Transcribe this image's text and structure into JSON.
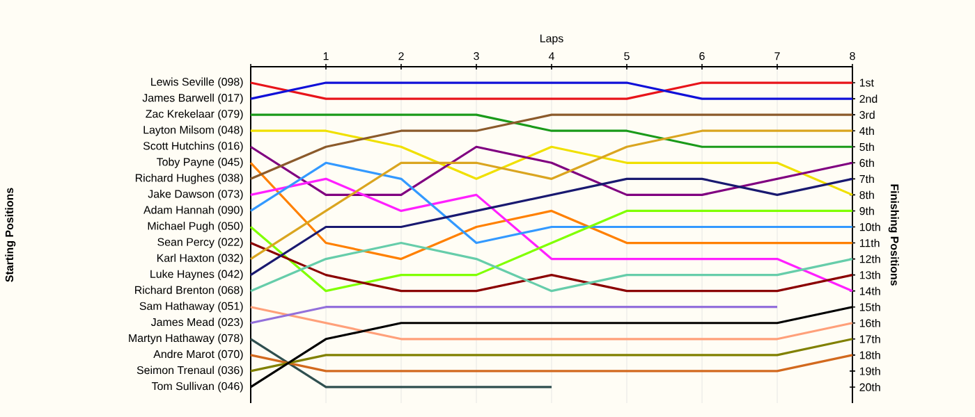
{
  "chart_data": {
    "type": "line",
    "xlabel": "Laps",
    "annotations": [
      "Starting Positions"
    ],
    "y2label": "Finishing Positions",
    "x": [
      0,
      1,
      2,
      3,
      4,
      5,
      6,
      7,
      8
    ],
    "xlim": [
      0,
      8
    ],
    "xticks": [
      {
        "value": 0,
        "label": null
      },
      1,
      2,
      3,
      4,
      5,
      6,
      7,
      8
    ],
    "y2lim": [
      21,
      0
    ],
    "y2ticks": [
      {
        "value": 1,
        "label": "1st"
      },
      {
        "value": 2,
        "label": "2nd"
      },
      {
        "value": 3,
        "label": "3rd"
      },
      {
        "value": 4,
        "label": "4th"
      },
      {
        "value": 5,
        "label": "5th"
      },
      {
        "value": 6,
        "label": "6th"
      },
      {
        "value": 7,
        "label": "7th"
      },
      {
        "value": 8,
        "label": "8th"
      },
      {
        "value": 9,
        "label": "9th"
      },
      {
        "value": 10,
        "label": "10th"
      },
      {
        "value": 11,
        "label": "11th"
      },
      {
        "value": 12,
        "label": "12th"
      },
      {
        "value": 13,
        "label": "13th"
      },
      {
        "value": 14,
        "label": "14th"
      },
      {
        "value": 15,
        "label": "15th"
      },
      {
        "value": 16,
        "label": "16th"
      },
      {
        "value": 17,
        "label": "17th"
      },
      {
        "value": 18,
        "label": "18th"
      },
      {
        "value": 19,
        "label": "19th"
      },
      {
        "value": 20,
        "label": "20th"
      }
    ],
    "grid": true,
    "line_style": "solid",
    "marker": "none",
    "series": [
      {
        "name": "Lewis Seville (098)",
        "axis": "y2",
        "color": "#e8141a",
        "values": [
          1,
          2,
          2,
          2,
          2,
          2,
          1,
          1,
          1
        ]
      },
      {
        "name": "James Barwell (017)",
        "axis": "y2",
        "color": "#1010d8",
        "values": [
          2,
          1,
          1,
          1,
          1,
          1,
          2,
          2,
          2
        ]
      },
      {
        "name": "Zac Krekelaar (079)",
        "axis": "y2",
        "color": "#1a9a1a",
        "values": [
          3,
          3,
          3,
          3,
          4,
          4,
          5,
          5,
          5
        ]
      },
      {
        "name": "Layton Milsom (048)",
        "axis": "y2",
        "color": "#f0e000",
        "values": [
          4,
          4,
          5,
          7,
          5,
          6,
          6,
          6,
          8
        ]
      },
      {
        "name": "Scott Hutchins (016)",
        "axis": "y2",
        "color": "#800080",
        "values": [
          5,
          8,
          8,
          5,
          6,
          8,
          8,
          7,
          6
        ]
      },
      {
        "name": "Toby Payne (045)",
        "axis": "y2",
        "color": "#ff8000",
        "values": [
          6,
          11,
          12,
          10,
          9,
          11,
          11,
          11,
          11
        ]
      },
      {
        "name": "Richard Hughes (038)",
        "axis": "y2",
        "color": "#8b5a2b",
        "values": [
          7,
          5,
          4,
          4,
          3,
          3,
          3,
          3,
          3
        ]
      },
      {
        "name": "Jake Dawson (073)",
        "axis": "y2",
        "color": "#ff20ff",
        "values": [
          8,
          7,
          9,
          8,
          12,
          12,
          12,
          12,
          14
        ]
      },
      {
        "name": "Adam Hannah (090)",
        "axis": "y2",
        "color": "#3399ff",
        "values": [
          9,
          6,
          7,
          11,
          10,
          10,
          10,
          10,
          10
        ]
      },
      {
        "name": "Michael Pugh (050)",
        "axis": "y2",
        "color": "#80ff00",
        "values": [
          10,
          14,
          13,
          13,
          11,
          9,
          9,
          9,
          9
        ]
      },
      {
        "name": "Sean Percy (022)",
        "axis": "y2",
        "color": "#8b0000",
        "values": [
          11,
          13,
          14,
          14,
          13,
          14,
          14,
          14,
          13
        ]
      },
      {
        "name": "Karl Haxton (032)",
        "axis": "y2",
        "color": "#daa520",
        "values": [
          12,
          9,
          6,
          6,
          7,
          5,
          4,
          4,
          4
        ]
      },
      {
        "name": "Luke Haynes (042)",
        "axis": "y2",
        "color": "#191970",
        "values": [
          13,
          10,
          10,
          9,
          8,
          7,
          7,
          8,
          7
        ]
      },
      {
        "name": "Richard Brenton (068)",
        "axis": "y2",
        "color": "#66cdaa",
        "values": [
          14,
          12,
          11,
          12,
          14,
          13,
          13,
          13,
          12
        ]
      },
      {
        "name": "Sam Hathaway (051)",
        "axis": "y2",
        "color": "#ffa07a",
        "values": [
          15,
          16,
          17,
          17,
          17,
          17,
          17,
          17,
          16
        ]
      },
      {
        "name": "James Mead (023)",
        "axis": "y2",
        "color": "#9370db",
        "values": [
          16,
          15,
          15,
          15,
          15,
          15,
          15,
          15,
          null
        ]
      },
      {
        "name": "Martyn Hathaway (078)",
        "axis": "y2",
        "color": "#2f4f4f",
        "values": [
          17,
          20,
          20,
          20,
          20,
          null,
          null,
          null,
          null
        ]
      },
      {
        "name": "Andre Marot (070)",
        "axis": "y2",
        "color": "#d2691e",
        "values": [
          18,
          19,
          19,
          19,
          19,
          19,
          19,
          19,
          18
        ]
      },
      {
        "name": "Seimon Trenaul (036)",
        "axis": "y2",
        "color": "#808000",
        "values": [
          19,
          18,
          18,
          18,
          18,
          18,
          18,
          18,
          17
        ]
      },
      {
        "name": "Tom Sullivan (046)",
        "axis": "y2",
        "color": "#000000",
        "values": [
          20,
          17,
          16,
          16,
          16,
          16,
          16,
          16,
          15
        ]
      }
    ]
  }
}
